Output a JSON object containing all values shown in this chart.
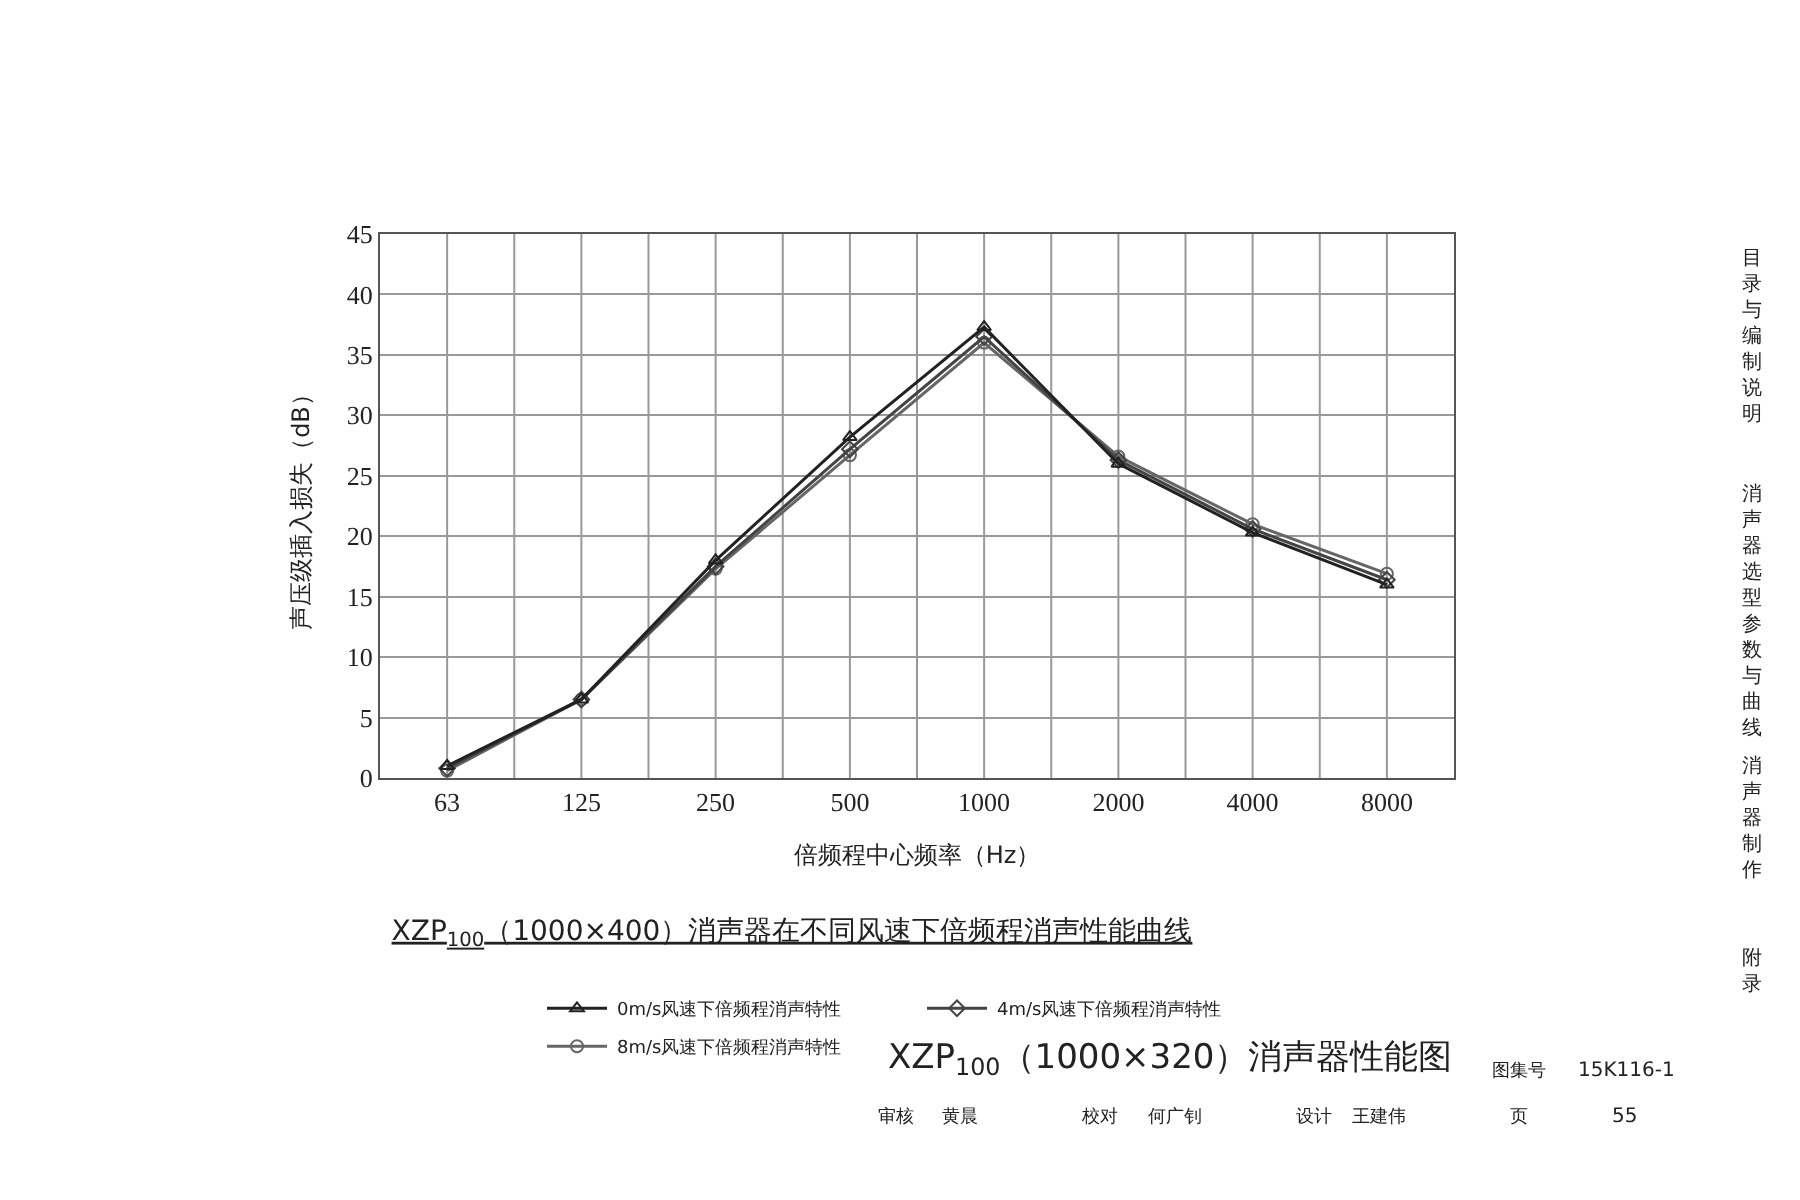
{
  "chart_data": {
    "type": "line",
    "title": "XZP$_{100}$（1000×400）消声器在不同风速下倍频程消声性能曲线",
    "xlabel": "倍频程中心频率（Hz）",
    "ylabel": "声压级插入损失（dB）",
    "categories": [
      "63",
      "125",
      "250",
      "500",
      "1000",
      "2000",
      "4000",
      "8000"
    ],
    "ylim": [
      0,
      45
    ],
    "yticks": [
      0,
      5,
      10,
      15,
      20,
      25,
      30,
      35,
      40,
      45
    ],
    "grid": true,
    "legend": "bottom",
    "line_style": "solid",
    "series": [
      {
        "name": "0m/s风速下倍频程消声特性",
        "color": "#222222",
        "marker": "triangle",
        "values": [
          1.0,
          6.5,
          18.0,
          28.2,
          37.3,
          26.0,
          20.3,
          16.0
        ]
      },
      {
        "name": "4m/s风速下倍频程消声特性",
        "color": "#444444",
        "marker": "diamond",
        "values": [
          0.8,
          6.5,
          17.5,
          27.2,
          36.5,
          26.3,
          20.6,
          16.4
        ]
      },
      {
        "name": "8m/s风速下倍频程消声特性",
        "color": "#666666",
        "marker": "circle",
        "values": [
          0.6,
          6.5,
          17.3,
          26.7,
          36.0,
          26.6,
          21.0,
          16.9
        ]
      }
    ],
    "annotations": [
      "XZP$_{100}$（1000×320）消声器性能图",
      "图集号",
      "15K116-1",
      "审核",
      "黄晨",
      "校对",
      "何广钊",
      "设计",
      "王建伟",
      "页",
      "55",
      "目录与编制说明",
      "消声器选型参数与曲线",
      "消声器制作",
      "附录"
    ]
  }
}
